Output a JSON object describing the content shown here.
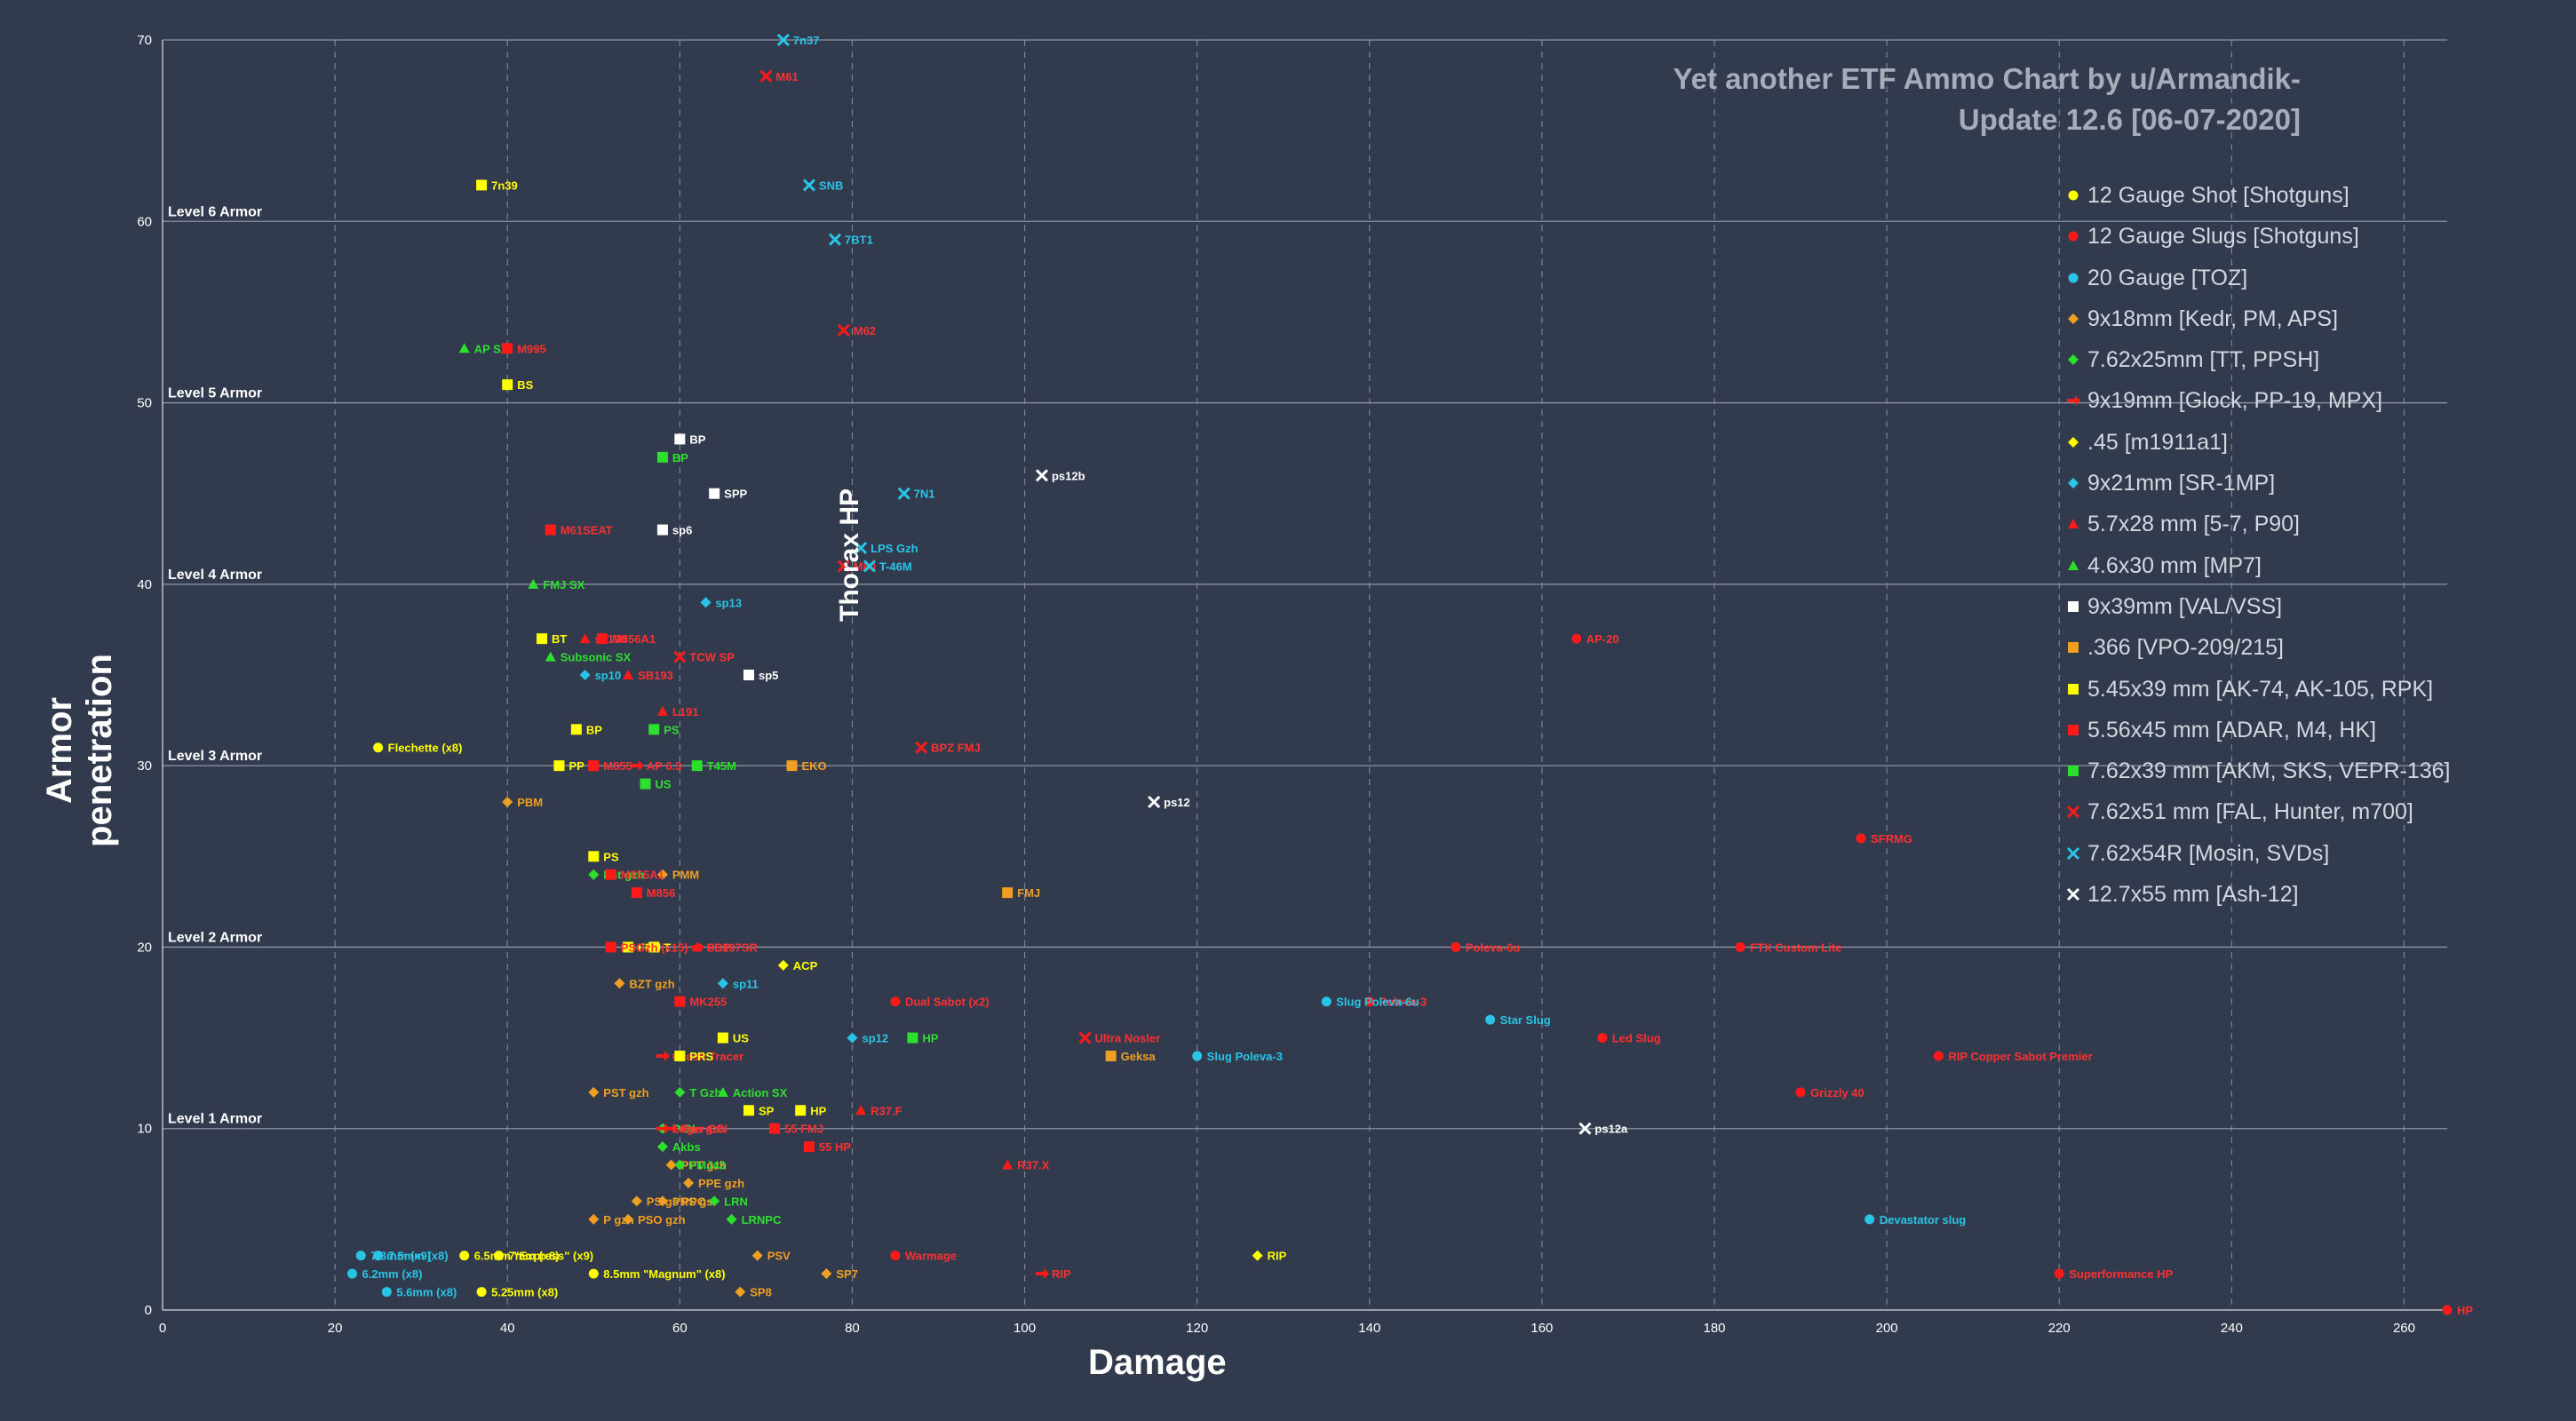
{
  "chart_data": {
    "type": "scatter",
    "title": [
      "Yet another ETF Ammo Chart by u/Armandik-",
      "Update 12.6  [06-07-2020]"
    ],
    "xlabel": "Damage",
    "ylabel": "Armor penetration",
    "xlim": [
      0,
      265
    ],
    "ylim": [
      0,
      70
    ],
    "x_ticks": [
      0,
      20,
      40,
      60,
      80,
      100,
      120,
      140,
      160,
      180,
      200,
      220,
      240,
      260
    ],
    "y_ticks": [
      0,
      10,
      20,
      30,
      40,
      50,
      60,
      70
    ],
    "armor_levels": [
      {
        "label": "Level 1 Armor",
        "y": 10
      },
      {
        "label": "Level 2 Armor",
        "y": 20
      },
      {
        "label": "Level 3 Armor",
        "y": 30
      },
      {
        "label": "Level 4 Armor",
        "y": 40
      },
      {
        "label": "Level 5 Armor",
        "y": 50
      },
      {
        "label": "Level 6 Armor",
        "y": 60
      }
    ],
    "annotation": "Thorax HP",
    "series": [
      {
        "name": "12 Gauge Shot [Shotguns]",
        "marker": "circle",
        "color": "#ffff00",
        "labelcolor": "#ffff00",
        "points": [
          {
            "label": "Flechette (x8)",
            "x": 25,
            "y": 31
          },
          {
            "label": "6.5mm \"Express\" (x9)",
            "x": 35,
            "y": 3
          },
          {
            "label": "7mm (x8)",
            "x": 39,
            "y": 3
          },
          {
            "label": "8.5mm \"Magnum\" (x8)",
            "x": 50,
            "y": 2
          },
          {
            "label": "5.25mm (x8)",
            "x": 37,
            "y": 1
          }
        ]
      },
      {
        "name": "12 Gauge Slugs [Shotguns]",
        "marker": "circle",
        "color": "#ff1a1a",
        "labelcolor": "#ff3030",
        "points": [
          {
            "label": "AP-20",
            "x": 164,
            "y": 37
          },
          {
            "label": "SFRMG",
            "x": 197,
            "y": 26
          },
          {
            "label": "FTX Custom Lite",
            "x": 183,
            "y": 20
          },
          {
            "label": "Poleva-6u",
            "x": 150,
            "y": 20
          },
          {
            "label": "Dual Sabot (x2)",
            "x": 85,
            "y": 17
          },
          {
            "label": "Poleva-3",
            "x": 140,
            "y": 17
          },
          {
            "label": "Led Slug",
            "x": 167,
            "y": 15
          },
          {
            "label": "RIP Copper Sabot Premier",
            "x": 206,
            "y": 14
          },
          {
            "label": "Grizzly 40",
            "x": 190,
            "y": 12
          },
          {
            "label": "Warmage",
            "x": 85,
            "y": 3
          },
          {
            "label": "Superformance HP",
            "x": 220,
            "y": 2
          },
          {
            "label": "HP",
            "x": 265,
            "y": 0
          }
        ]
      },
      {
        "name": "20 Gauge [TOZ]",
        "marker": "circle",
        "color": "#29c5e6",
        "labelcolor": "#29c5e6",
        "points": [
          {
            "label": "Slug Poleva-6u",
            "x": 135,
            "y": 17
          },
          {
            "label": "Star Slug",
            "x": 154,
            "y": 16
          },
          {
            "label": "Slug Poleva-3",
            "x": 120,
            "y": 14
          },
          {
            "label": "Devastator slug",
            "x": 198,
            "y": 5
          },
          {
            "label": "7.3mm (x9)",
            "x": 23,
            "y": 3
          },
          {
            "label": "7.5mm (x8)",
            "x": 25,
            "y": 3
          },
          {
            "label": "6.2mm (x8)",
            "x": 22,
            "y": 2
          },
          {
            "label": "5.6mm (x8)",
            "x": 26,
            "y": 1
          }
        ]
      },
      {
        "name": "9x18mm [Kedr, PM, APS]",
        "marker": "diamond",
        "color": "#f0a020",
        "labelcolor": "#f0a020",
        "points": [
          {
            "label": "PBM",
            "x": 40,
            "y": 28
          },
          {
            "label": "PMM",
            "x": 58,
            "y": 24
          },
          {
            "label": "BZT gzh",
            "x": 53,
            "y": 18
          },
          {
            "label": "PST gzh",
            "x": 50,
            "y": 12
          },
          {
            "label": "PPE gzh",
            "x": 61,
            "y": 7
          },
          {
            "label": "PPT gzh",
            "x": 59,
            "y": 8
          },
          {
            "label": "PS gs PPO",
            "x": 55,
            "y": 6
          },
          {
            "label": "PRS gs",
            "x": 58,
            "y": 6
          },
          {
            "label": "P gzh",
            "x": 50,
            "y": 5
          },
          {
            "label": "PSO gzh",
            "x": 54,
            "y": 5
          },
          {
            "label": "PSV",
            "x": 69,
            "y": 3
          },
          {
            "label": "SP7",
            "x": 77,
            "y": 2
          },
          {
            "label": "SP8",
            "x": 67,
            "y": 1
          }
        ]
      },
      {
        "name": "7.62x25mm [TT, PPSH]",
        "marker": "diamond",
        "color": "#2ee02e",
        "labelcolor": "#2ee02e",
        "points": [
          {
            "label": "Pst gzh",
            "x": 50,
            "y": 24
          },
          {
            "label": "Akbs",
            "x": 58,
            "y": 9
          },
          {
            "label": "FMJ43",
            "x": 60,
            "y": 8
          },
          {
            "label": "LRN",
            "x": 64,
            "y": 6
          },
          {
            "label": "LRNPC",
            "x": 66,
            "y": 5
          },
          {
            "label": "P GL",
            "x": 58,
            "y": 10
          },
          {
            "label": "T Gzh",
            "x": 60,
            "y": 12
          }
        ]
      },
      {
        "name": "9x19mm [Glock, PP-19, MPX]",
        "marker": "arrow",
        "color": "#ff1a1a",
        "labelcolor": "#ff3030",
        "points": [
          {
            "label": "AP 6.3",
            "x": 55,
            "y": 30
          },
          {
            "label": "PBP",
            "x": 62,
            "y": 20
          },
          {
            "label": "Green Tracer",
            "x": 58,
            "y": 14
          },
          {
            "label": "Pso gzh",
            "x": 59,
            "y": 10
          },
          {
            "label": "Luger CCI",
            "x": 58,
            "y": 10
          },
          {
            "label": "RIP",
            "x": 102,
            "y": 2
          }
        ]
      },
      {
        "name": ".45 [m1911a1]",
        "marker": "diamond",
        "color": "#ffff00",
        "labelcolor": "#ffff00",
        "points": [
          {
            "label": "ACP",
            "x": 72,
            "y": 19
          },
          {
            "label": "RIP",
            "x": 127,
            "y": 3
          }
        ]
      },
      {
        "name": "9x21mm [SR-1MP]",
        "marker": "diamond",
        "color": "#29c5e6",
        "labelcolor": "#29c5e6",
        "points": [
          {
            "label": "sp13",
            "x": 63,
            "y": 39
          },
          {
            "label": "sp10",
            "x": 49,
            "y": 35
          },
          {
            "label": "sp11",
            "x": 65,
            "y": 18
          },
          {
            "label": "sp12",
            "x": 80,
            "y": 15
          }
        ]
      },
      {
        "name": "5.7x28 mm [5-7, P90]",
        "marker": "triangle",
        "color": "#ff1a1a",
        "labelcolor": "#ff3030",
        "points": [
          {
            "label": "ss190",
            "x": 49,
            "y": 37
          },
          {
            "label": "SB193",
            "x": 54,
            "y": 35
          },
          {
            "label": "L191",
            "x": 58,
            "y": 33
          },
          {
            "label": "R37.F",
            "x": 81,
            "y": 11
          },
          {
            "label": "R37.X",
            "x": 98,
            "y": 8
          },
          {
            "label": "SS197SR",
            "x": 62,
            "y": 20
          }
        ]
      },
      {
        "name": "4.6x30 mm [MP7]",
        "marker": "triangle",
        "color": "#2ee02e",
        "labelcolor": "#2ee02e",
        "points": [
          {
            "label": "AP SX",
            "x": 35,
            "y": 53
          },
          {
            "label": "FMJ SX",
            "x": 43,
            "y": 40
          },
          {
            "label": "Subsonic SX",
            "x": 45,
            "y": 36
          },
          {
            "label": "Action SX",
            "x": 65,
            "y": 12
          }
        ]
      },
      {
        "name": "9x39mm [VAL/VSS]",
        "marker": "square",
        "color": "#ffffff",
        "labelcolor": "#ffffff",
        "points": [
          {
            "label": "BP",
            "x": 60,
            "y": 48
          },
          {
            "label": "SPP",
            "x": 64,
            "y": 45
          },
          {
            "label": "sp6",
            "x": 58,
            "y": 43
          },
          {
            "label": "sp5",
            "x": 68,
            "y": 35
          }
        ]
      },
      {
        "name": ".366 [VPO-209/215]",
        "marker": "square",
        "color": "#f0a020",
        "labelcolor": "#f0a020",
        "points": [
          {
            "label": "EKO",
            "x": 73,
            "y": 30
          },
          {
            "label": "FMJ",
            "x": 98,
            "y": 23
          },
          {
            "label": "Geksa",
            "x": 110,
            "y": 14
          }
        ]
      },
      {
        "name": "5.45x39 mm [AK-74, AK-105, RPK]",
        "marker": "square",
        "color": "#ffff00",
        "labelcolor": "#ffff00",
        "points": [
          {
            "label": "7n39",
            "x": 37,
            "y": 62
          },
          {
            "label": "BS",
            "x": 40,
            "y": 51
          },
          {
            "label": "BT",
            "x": 44,
            "y": 37
          },
          {
            "label": "BP",
            "x": 48,
            "y": 32
          },
          {
            "label": "PP",
            "x": 46,
            "y": 30
          },
          {
            "label": "PS",
            "x": 50,
            "y": 25
          },
          {
            "label": "FMJ",
            "x": 54,
            "y": 20
          },
          {
            "label": "T",
            "x": 57,
            "y": 20
          },
          {
            "label": "US",
            "x": 65,
            "y": 15
          },
          {
            "label": "PRS",
            "x": 60,
            "y": 14
          },
          {
            "label": "SP",
            "x": 68,
            "y": 11
          },
          {
            "label": "HP",
            "x": 74,
            "y": 11
          }
        ]
      },
      {
        "name": "5.56x45 mm [ADAR, M4, HK]",
        "marker": "square",
        "color": "#ff1a1a",
        "labelcolor": "#ff3030",
        "points": [
          {
            "label": "M995",
            "x": 40,
            "y": 53
          },
          {
            "label": "M61SEAT",
            "x": 45,
            "y": 43
          },
          {
            "label": "M856A1",
            "x": 51,
            "y": 37
          },
          {
            "label": "M855",
            "x": 50,
            "y": 30
          },
          {
            "label": "M856",
            "x": 55,
            "y": 23
          },
          {
            "label": "M855A1",
            "x": 52,
            "y": 24
          },
          {
            "label": "PSGzh (x15)",
            "x": 52,
            "y": 20
          },
          {
            "label": "MK255",
            "x": 60,
            "y": 17
          },
          {
            "label": "55 FMJ",
            "x": 71,
            "y": 10
          },
          {
            "label": "55 HP",
            "x": 75,
            "y": 9
          }
        ]
      },
      {
        "name": "7.62x39 mm [AKM, SKS, VEPR-136]",
        "marker": "square",
        "color": "#2ee02e",
        "labelcolor": "#2ee02e",
        "points": [
          {
            "label": "BP",
            "x": 58,
            "y": 47
          },
          {
            "label": "PS",
            "x": 57,
            "y": 32
          },
          {
            "label": "T45M",
            "x": 62,
            "y": 30
          },
          {
            "label": "US",
            "x": 56,
            "y": 29
          },
          {
            "label": "HP",
            "x": 87,
            "y": 15
          }
        ]
      },
      {
        "name": "7.62x51 mm [FAL, Hunter, m700]",
        "marker": "x",
        "color": "#ff1a1a",
        "labelcolor": "#ff3030",
        "points": [
          {
            "label": "M61",
            "x": 70,
            "y": 68
          },
          {
            "label": "M62",
            "x": 79,
            "y": 54
          },
          {
            "label": "M80",
            "x": 79,
            "y": 41
          },
          {
            "label": "TCW SP",
            "x": 60,
            "y": 36
          },
          {
            "label": "BPZ FMJ",
            "x": 88,
            "y": 31
          },
          {
            "label": "Ultra Nosler",
            "x": 107,
            "y": 15
          }
        ]
      },
      {
        "name": "7.62x54R [Mosin, SVDs]",
        "marker": "x",
        "color": "#29c5e6",
        "labelcolor": "#29c5e6",
        "points": [
          {
            "label": "7n37",
            "x": 72,
            "y": 70
          },
          {
            "label": "SNB",
            "x": 75,
            "y": 62
          },
          {
            "label": "7BT1",
            "x": 78,
            "y": 59
          },
          {
            "label": "7N1",
            "x": 86,
            "y": 45
          },
          {
            "label": "LPS Gzh",
            "x": 81,
            "y": 42
          },
          {
            "label": "T-46M",
            "x": 82,
            "y": 41
          }
        ]
      },
      {
        "name": "12.7x55 mm [Ash-12]",
        "marker": "x",
        "color": "#ffffff",
        "labelcolor": "#ffffff",
        "points": [
          {
            "label": "ps12b",
            "x": 102,
            "y": 46
          },
          {
            "label": "ps12",
            "x": 115,
            "y": 28
          },
          {
            "label": "ps12a",
            "x": 165,
            "y": 10
          }
        ]
      }
    ]
  }
}
